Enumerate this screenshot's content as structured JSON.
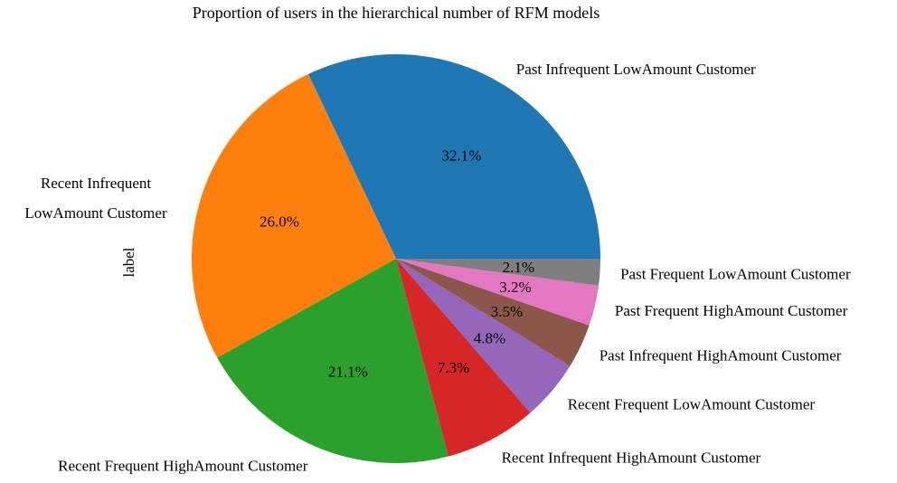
{
  "chart_data": {
    "type": "pie",
    "title": "Proportion of users in the hierarchical number of RFM models",
    "ylabel": "label",
    "slices": [
      {
        "label": "Past Infrequent LowAmount Customer",
        "value": 32.1,
        "pct_label": "32.1%",
        "color": "#1f77b4"
      },
      {
        "label": "Recent Infrequent LowAmount Customer",
        "value": 26.0,
        "pct_label": "26.0%",
        "color": "#ff7f0e"
      },
      {
        "label": "Recent Frequent HighAmount Customer",
        "value": 21.1,
        "pct_label": "21.1%",
        "color": "#2ca02c"
      },
      {
        "label": "Recent Infrequent HighAmount Customer",
        "value": 7.3,
        "pct_label": "7.3%",
        "color": "#d62728"
      },
      {
        "label": "Recent Frequent LowAmount Customer",
        "value": 4.8,
        "pct_label": "4.8%",
        "color": "#9467bd"
      },
      {
        "label": "Past Infrequent HighAmount Customer",
        "value": 3.5,
        "pct_label": "3.5%",
        "color": "#8c564b"
      },
      {
        "label": "Past Frequent HighAmount Customer",
        "value": 3.2,
        "pct_label": "3.2%",
        "color": "#e377c2"
      },
      {
        "label": "Past Frequent LowAmount Customer",
        "value": 2.1,
        "pct_label": "2.1%",
        "color": "#7f7f7f"
      }
    ],
    "start_angle": "0 degrees (3 o'clock)",
    "direction": "counterclockwise"
  }
}
